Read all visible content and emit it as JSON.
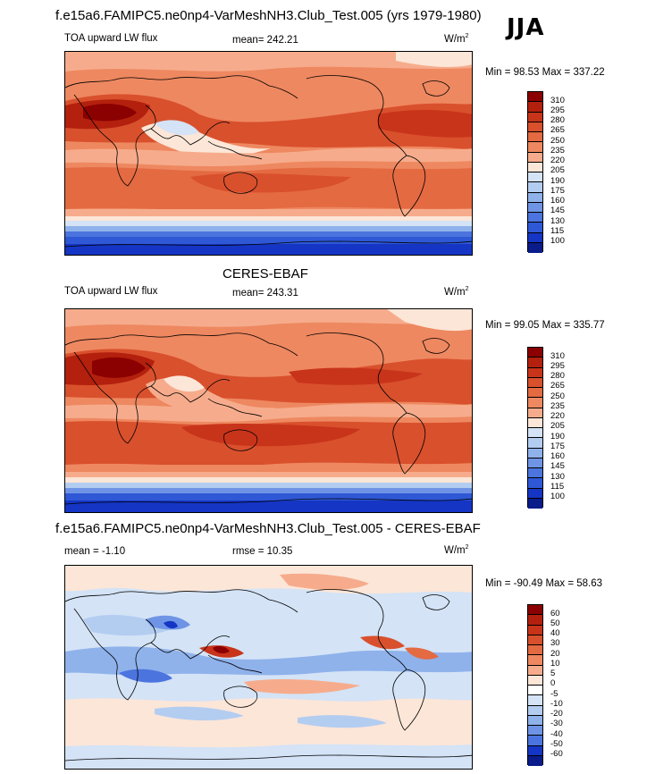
{
  "season": "JJA",
  "panels": [
    {
      "title": "f.e15a6.FAMIPC5.ne0np4-VarMeshNH3.Club_Test.005 (yrs 1979-1980)",
      "left_label": "TOA upward LW flux",
      "center_label": "mean= 242.21",
      "units": "W/m",
      "units_sup": "2",
      "minmax": "Min =  98.53 Max = 337.22",
      "levels": [
        "310",
        "295",
        "280",
        "265",
        "250",
        "235",
        "220",
        "205",
        "190",
        "175",
        "160",
        "145",
        "130",
        "115",
        "100"
      ],
      "colors": [
        "#8b0000",
        "#b3200d",
        "#c8341a",
        "#d9502d",
        "#e46a42",
        "#ee8860",
        "#f6ac8c",
        "#fce6d8",
        "#d4e3f6",
        "#b3cdf1",
        "#8fb2eb",
        "#6f94e6",
        "#4b74de",
        "#2f58d6",
        "#1535c4",
        "#0a1b8a"
      ]
    },
    {
      "title": "CERES-EBAF",
      "left_label": "TOA upward LW flux",
      "center_label": "mean= 243.31",
      "units": "W/m",
      "units_sup": "2",
      "minmax": "Min =  99.05 Max = 335.77",
      "levels": [
        "310",
        "295",
        "280",
        "265",
        "250",
        "235",
        "220",
        "205",
        "190",
        "175",
        "160",
        "145",
        "130",
        "115",
        "100"
      ],
      "colors": [
        "#8b0000",
        "#b3200d",
        "#c8341a",
        "#d9502d",
        "#e46a42",
        "#ee8860",
        "#f6ac8c",
        "#fce6d8",
        "#d4e3f6",
        "#b3cdf1",
        "#8fb2eb",
        "#6f94e6",
        "#4b74de",
        "#2f58d6",
        "#1535c4",
        "#0a1b8a"
      ]
    },
    {
      "title": "f.e15a6.FAMIPC5.ne0np4-VarMeshNH3.Club_Test.005 - CERES-EBAF",
      "left_label": "mean =  -1.10",
      "center_label": "rmse =  10.35",
      "units": "W/m",
      "units_sup": "2",
      "minmax": "Min = -90.49 Max =  58.63",
      "levels": [
        "60",
        "50",
        "40",
        "30",
        "20",
        "10",
        "5",
        "0",
        "-5",
        "-10",
        "-20",
        "-30",
        "-40",
        "-50",
        "-60"
      ],
      "colors": [
        "#8b0000",
        "#b3200d",
        "#c8341a",
        "#d9502d",
        "#e46a42",
        "#ee8860",
        "#f6ac8c",
        "#fce6d8",
        "#ffffff",
        "#d4e3f6",
        "#b3cdf1",
        "#8fb2eb",
        "#6f94e6",
        "#4b74de",
        "#1535c4",
        "#0a1b8a"
      ]
    }
  ]
}
